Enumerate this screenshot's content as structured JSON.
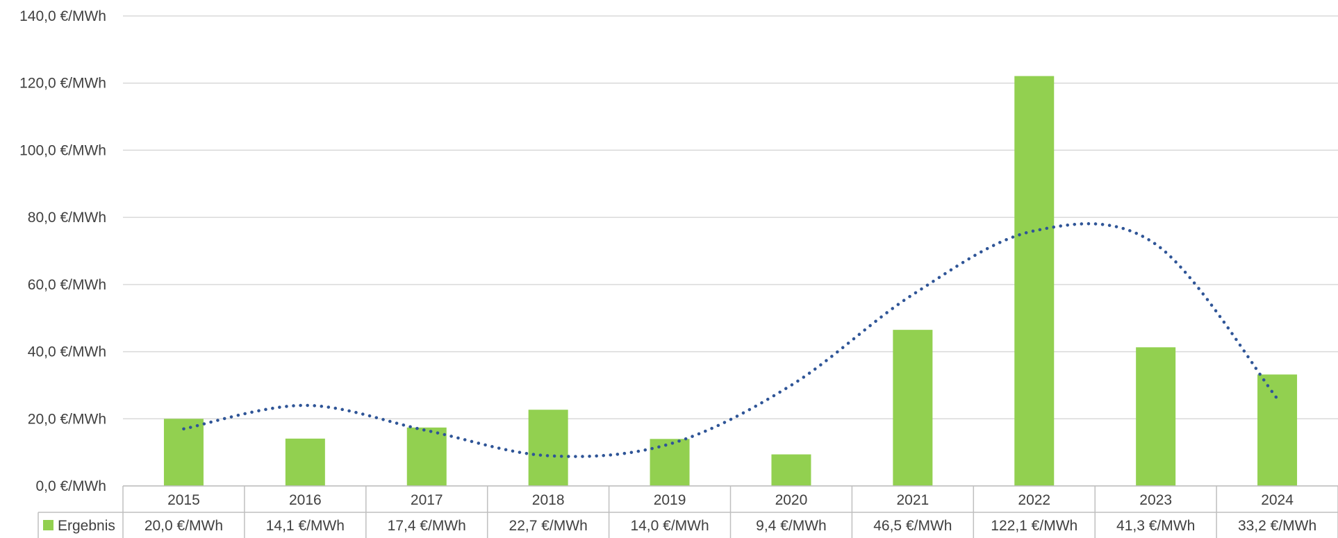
{
  "chart_data": {
    "type": "bar",
    "categories": [
      "2015",
      "2016",
      "2017",
      "2018",
      "2019",
      "2020",
      "2021",
      "2022",
      "2023",
      "2024"
    ],
    "series": [
      {
        "name": "Ergebnis",
        "values": [
          20.0,
          14.1,
          17.4,
          22.7,
          14.0,
          9.4,
          46.5,
          122.1,
          41.3,
          33.2
        ],
        "labels": [
          "20,0 €/MWh",
          "14,1 €/MWh",
          "17,4 €/MWh",
          "22,7 €/MWh",
          "14,0 €/MWh",
          "9,4 €/MWh",
          "46,5 €/MWh",
          "122,1 €/MWh",
          "41,3 €/MWh",
          "33,2 €/MWh"
        ],
        "color": "#92d050"
      }
    ],
    "trendline": {
      "type": "polynomial",
      "style": "dotted",
      "color": "#2f5597",
      "values": [
        17.0,
        24.0,
        16.5,
        9.0,
        12.5,
        30.0,
        57.0,
        76.0,
        72.0,
        26.0
      ]
    },
    "ylim": [
      0,
      140
    ],
    "yticks": [
      0,
      20,
      40,
      60,
      80,
      100,
      120,
      140
    ],
    "ytick_labels": [
      "0,0 €/MWh",
      "20,0 €/MWh",
      "40,0 €/MWh",
      "60,0 €/MWh",
      "80,0 €/MWh",
      "100,0 €/MWh",
      "120,0 €/MWh",
      "140,0 €/MWh"
    ],
    "grid": true,
    "data_table": true,
    "title": "",
    "xlabel": "",
    "ylabel": ""
  }
}
